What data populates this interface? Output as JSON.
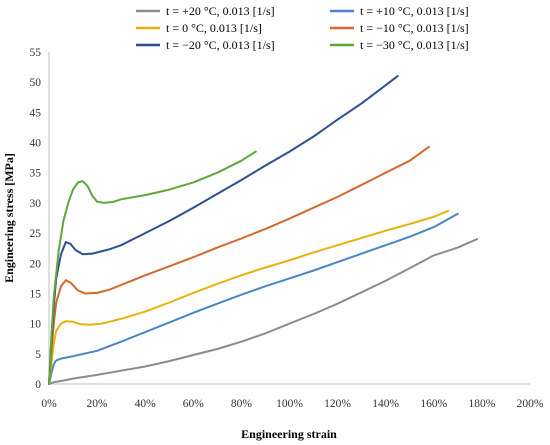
{
  "chart_data": {
    "type": "line",
    "xlabel": "Engineering strain",
    "ylabel": "Engineering stress [MPa]",
    "xlim": [
      0,
      200
    ],
    "ylim": [
      0,
      55
    ],
    "x_ticks": [
      "0%",
      "20%",
      "40%",
      "60%",
      "80%",
      "100%",
      "120%",
      "140%",
      "160%",
      "180%",
      "200%"
    ],
    "y_ticks": [
      "0",
      "5",
      "10",
      "15",
      "20",
      "25",
      "30",
      "35",
      "40",
      "45",
      "50",
      "55"
    ],
    "grid": false,
    "legend_position": "top",
    "series": [
      {
        "name": "t = +20 °C, 0.013 [1/s]",
        "color": "#8c8c8c",
        "points": [
          [
            0,
            0
          ],
          [
            2,
            0.3
          ],
          [
            5,
            0.5
          ],
          [
            10,
            0.9
          ],
          [
            20,
            1.5
          ],
          [
            30,
            2.2
          ],
          [
            40,
            2.9
          ],
          [
            50,
            3.8
          ],
          [
            60,
            4.8
          ],
          [
            70,
            5.8
          ],
          [
            80,
            7.0
          ],
          [
            90,
            8.4
          ],
          [
            100,
            10.0
          ],
          [
            110,
            11.6
          ],
          [
            120,
            13.3
          ],
          [
            130,
            15.2
          ],
          [
            140,
            17.1
          ],
          [
            150,
            19.2
          ],
          [
            160,
            21.3
          ],
          [
            170,
            22.6
          ],
          [
            178,
            24.0
          ]
        ]
      },
      {
        "name": "t = +10 °C, 0.013 [1/s]",
        "color": "#4a86c5",
        "points": [
          [
            0,
            0
          ],
          [
            1,
            1.8
          ],
          [
            2,
            3.3
          ],
          [
            3,
            3.9
          ],
          [
            5,
            4.2
          ],
          [
            10,
            4.6
          ],
          [
            20,
            5.5
          ],
          [
            30,
            7.0
          ],
          [
            40,
            8.6
          ],
          [
            50,
            10.2
          ],
          [
            60,
            11.8
          ],
          [
            70,
            13.3
          ],
          [
            80,
            14.8
          ],
          [
            90,
            16.2
          ],
          [
            100,
            17.5
          ],
          [
            110,
            18.8
          ],
          [
            120,
            20.2
          ],
          [
            130,
            21.6
          ],
          [
            140,
            23.0
          ],
          [
            150,
            24.4
          ],
          [
            160,
            26.0
          ],
          [
            170,
            28.2
          ]
        ]
      },
      {
        "name": "t = 0 °C, 0.013 [1/s]",
        "color": "#e8b10b",
        "points": [
          [
            0,
            0
          ],
          [
            1,
            3.5
          ],
          [
            2,
            6.8
          ],
          [
            3,
            8.8
          ],
          [
            5,
            10.0
          ],
          [
            7,
            10.4
          ],
          [
            10,
            10.3
          ],
          [
            13,
            9.9
          ],
          [
            17,
            9.8
          ],
          [
            22,
            10.0
          ],
          [
            30,
            10.8
          ],
          [
            40,
            12.0
          ],
          [
            50,
            13.5
          ],
          [
            60,
            15.1
          ],
          [
            70,
            16.6
          ],
          [
            80,
            18.0
          ],
          [
            90,
            19.3
          ],
          [
            100,
            20.5
          ],
          [
            110,
            21.8
          ],
          [
            120,
            23.0
          ],
          [
            130,
            24.2
          ],
          [
            140,
            25.4
          ],
          [
            150,
            26.5
          ],
          [
            160,
            27.7
          ],
          [
            166,
            28.7
          ]
        ]
      },
      {
        "name": "t = −10 °C, 0.013 [1/s]",
        "color": "#d4692b",
        "points": [
          [
            0,
            0
          ],
          [
            1,
            5.5
          ],
          [
            2,
            10.0
          ],
          [
            3,
            13.5
          ],
          [
            5,
            16.2
          ],
          [
            7,
            17.2
          ],
          [
            9,
            16.8
          ],
          [
            12,
            15.5
          ],
          [
            15,
            15.0
          ],
          [
            20,
            15.1
          ],
          [
            25,
            15.6
          ],
          [
            30,
            16.4
          ],
          [
            40,
            18.0
          ],
          [
            50,
            19.5
          ],
          [
            60,
            21.0
          ],
          [
            70,
            22.6
          ],
          [
            80,
            24.1
          ],
          [
            90,
            25.7
          ],
          [
            100,
            27.4
          ],
          [
            110,
            29.2
          ],
          [
            120,
            31.0
          ],
          [
            130,
            33.0
          ],
          [
            140,
            35.0
          ],
          [
            150,
            37.0
          ],
          [
            158,
            39.3
          ]
        ]
      },
      {
        "name": "t = −20 °C, 0.013 [1/s]",
        "color": "#2e4f96",
        "points": [
          [
            0,
            0
          ],
          [
            1,
            7.0
          ],
          [
            2,
            13.0
          ],
          [
            3,
            17.5
          ],
          [
            5,
            21.5
          ],
          [
            7,
            23.5
          ],
          [
            9,
            23.2
          ],
          [
            11,
            22.2
          ],
          [
            14,
            21.5
          ],
          [
            18,
            21.6
          ],
          [
            25,
            22.3
          ],
          [
            30,
            23.0
          ],
          [
            40,
            25.0
          ],
          [
            50,
            27.0
          ],
          [
            60,
            29.2
          ],
          [
            70,
            31.5
          ],
          [
            80,
            33.8
          ],
          [
            90,
            36.2
          ],
          [
            100,
            38.5
          ],
          [
            110,
            41.0
          ],
          [
            120,
            43.8
          ],
          [
            130,
            46.5
          ],
          [
            140,
            49.5
          ],
          [
            145,
            51.0
          ]
        ]
      },
      {
        "name": "t = −30 °C, 0.013 [1/s]",
        "color": "#5ea83a",
        "points": [
          [
            0,
            0
          ],
          [
            1,
            8.0
          ],
          [
            2,
            14.5
          ],
          [
            4,
            22.0
          ],
          [
            6,
            27.0
          ],
          [
            8,
            30.0
          ],
          [
            10,
            32.2
          ],
          [
            12,
            33.4
          ],
          [
            14,
            33.6
          ],
          [
            16,
            32.8
          ],
          [
            18,
            31.2
          ],
          [
            20,
            30.2
          ],
          [
            23,
            30.0
          ],
          [
            27,
            30.2
          ],
          [
            30,
            30.6
          ],
          [
            40,
            31.3
          ],
          [
            50,
            32.2
          ],
          [
            60,
            33.4
          ],
          [
            70,
            35.0
          ],
          [
            80,
            37.0
          ],
          [
            86,
            38.5
          ]
        ]
      }
    ]
  }
}
